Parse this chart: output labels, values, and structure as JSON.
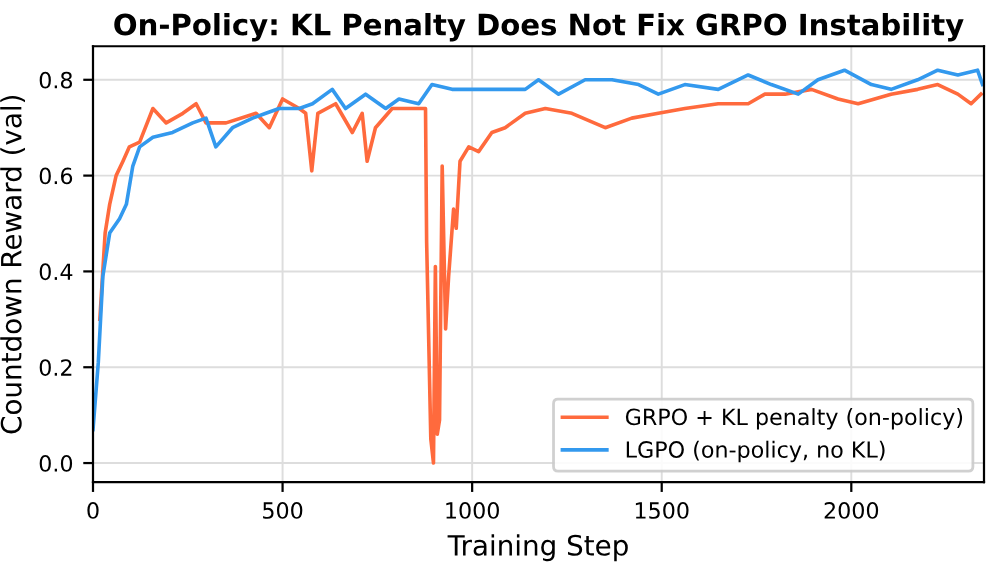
{
  "chart_data": {
    "type": "line",
    "title": "On-Policy: KL Penalty Does Not Fix GRPO Instability",
    "xlabel": "Training Step",
    "ylabel": "Countdown Reward (val)",
    "xlim": [
      0,
      2350
    ],
    "ylim": [
      -0.04,
      0.87
    ],
    "xticks": [
      0,
      500,
      1000,
      1500,
      2000
    ],
    "yticks": [
      {
        "value": 0,
        "label": "0.0"
      },
      {
        "value": 0.2,
        "label": "0.2"
      },
      {
        "value": 0.4,
        "label": "0.4"
      },
      {
        "value": 0.6,
        "label": "0.6"
      },
      {
        "value": 0.8,
        "label": "0.8"
      }
    ],
    "grid": true,
    "legend": "bottom right",
    "line_style": "solid",
    "marker": "none",
    "series": [
      {
        "name": "GRPO + KL penalty (on-policy)",
        "color": "#ff6a3d",
        "x": [
          18,
          32,
          44,
          61,
          79,
          96,
          123,
          158,
          193,
          237,
          272,
          298,
          351,
          430,
          465,
          500,
          544,
          561,
          577,
          593,
          640,
          684,
          710,
          723,
          745,
          789,
          842,
          877,
          880,
          891,
          898,
          903,
          908,
          914,
          921,
          930,
          938,
          951,
          958,
          968,
          991,
          1017,
          1052,
          1087,
          1140,
          1193,
          1263,
          1351,
          1421,
          1491,
          1561,
          1649,
          1728,
          1772,
          1825,
          1895,
          1965,
          2018,
          2105,
          2175,
          2228,
          2281,
          2316,
          2342
        ],
        "values": [
          0.3,
          0.48,
          0.54,
          0.6,
          0.63,
          0.66,
          0.67,
          0.74,
          0.71,
          0.73,
          0.75,
          0.71,
          0.71,
          0.73,
          0.7,
          0.76,
          0.74,
          0.73,
          0.61,
          0.73,
          0.75,
          0.69,
          0.73,
          0.63,
          0.7,
          0.74,
          0.74,
          0.74,
          0.46,
          0.05,
          0.0,
          0.41,
          0.06,
          0.09,
          0.62,
          0.28,
          0.39,
          0.53,
          0.49,
          0.63,
          0.66,
          0.65,
          0.69,
          0.7,
          0.73,
          0.74,
          0.73,
          0.7,
          0.72,
          0.73,
          0.74,
          0.75,
          0.75,
          0.77,
          0.77,
          0.78,
          0.76,
          0.75,
          0.77,
          0.78,
          0.79,
          0.77,
          0.75,
          0.77
        ]
      },
      {
        "name": "LGPO (on-policy, no KL)",
        "color": "#3399ee",
        "x": [
          0,
          14,
          26,
          44,
          70,
          88,
          105,
          123,
          158,
          210,
          263,
          298,
          324,
          368,
          421,
          456,
          491,
          544,
          579,
          631,
          666,
          719,
          772,
          807,
          859,
          894,
          947,
          1000,
          1070,
          1140,
          1175,
          1228,
          1298,
          1369,
          1439,
          1491,
          1561,
          1649,
          1728,
          1789,
          1860,
          1912,
          1982,
          2053,
          2105,
          2175,
          2228,
          2281,
          2333,
          2346
        ],
        "values": [
          0.07,
          0.21,
          0.39,
          0.48,
          0.51,
          0.54,
          0.62,
          0.66,
          0.68,
          0.69,
          0.71,
          0.72,
          0.66,
          0.7,
          0.72,
          0.73,
          0.74,
          0.74,
          0.75,
          0.78,
          0.74,
          0.77,
          0.74,
          0.76,
          0.75,
          0.79,
          0.78,
          0.78,
          0.78,
          0.78,
          0.8,
          0.77,
          0.8,
          0.8,
          0.79,
          0.77,
          0.79,
          0.78,
          0.81,
          0.79,
          0.77,
          0.8,
          0.82,
          0.79,
          0.78,
          0.8,
          0.82,
          0.81,
          0.82,
          0.79
        ]
      }
    ]
  }
}
